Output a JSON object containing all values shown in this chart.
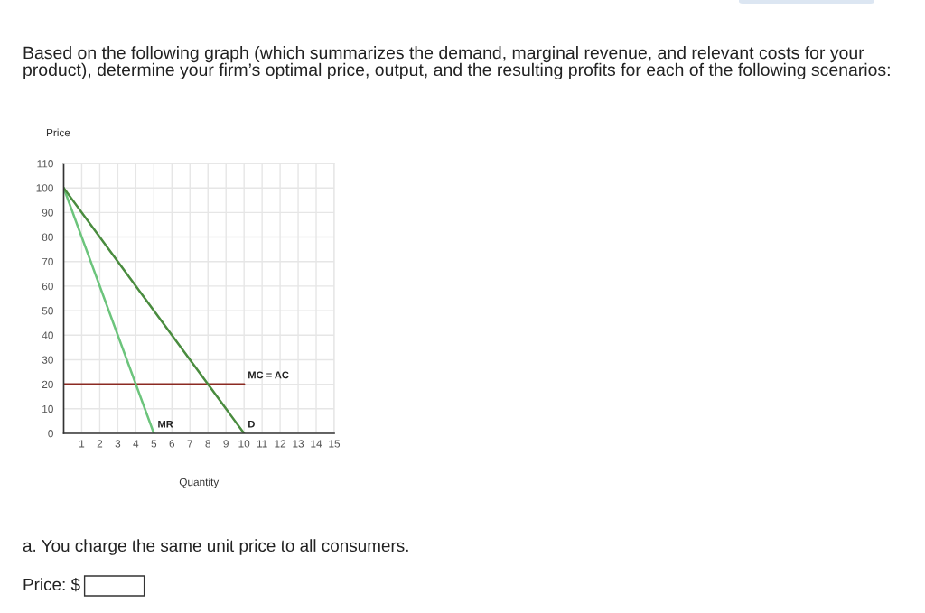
{
  "chart_data": {
    "type": "line",
    "title": "Based on the following graph (which summarizes the demand, marginal revenue, and relevant costs for your product), determine your firm’s optimal price, output, and the resulting profits for each of the following scenarios:",
    "xlabel": "Quantity",
    "ylabel": "Price",
    "annotations": [
      "a. You charge the same unit price to all consumers.",
      "Price: $"
    ],
    "series": [
      {
        "name": "MC = AC",
        "color": "#8b2a22",
        "x": [
          0,
          10
        ],
        "values": [
          20,
          20
        ]
      },
      {
        "name": "MR",
        "color": "#6cc47c",
        "x": [
          0,
          5
        ],
        "values": [
          100,
          0
        ]
      },
      {
        "name": "D",
        "color": "#4a8c3f",
        "x": [
          0,
          10
        ],
        "values": [
          100,
          0
        ]
      }
    ],
    "xlim": [
      0,
      15
    ],
    "ylim": [
      0,
      110
    ],
    "xticks": [
      1,
      2,
      3,
      4,
      5,
      6,
      7,
      8,
      9,
      10,
      11,
      12,
      13,
      14,
      15
    ],
    "yticks": [
      0,
      10,
      20,
      30,
      40,
      50,
      60,
      70,
      80,
      90,
      100,
      110
    ],
    "grid": true,
    "legend": false
  }
}
